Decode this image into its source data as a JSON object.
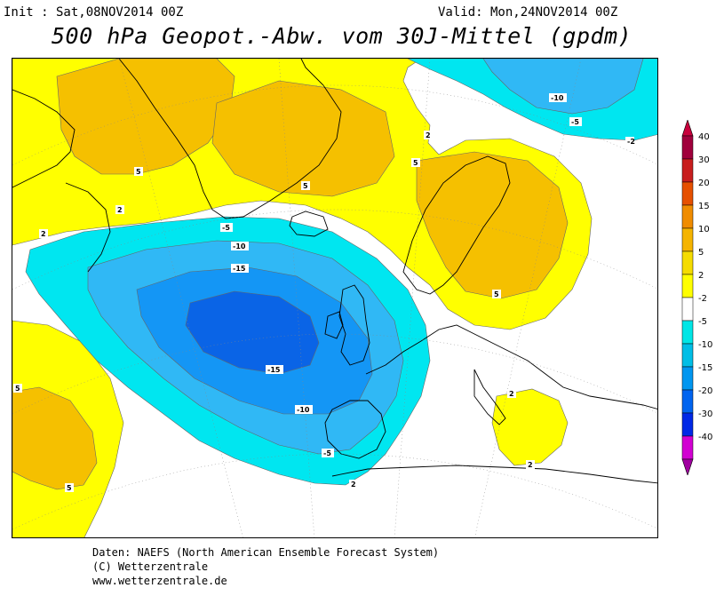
{
  "header": {
    "init": "Init : Sat,08NOV2014 00Z",
    "valid": "Valid: Mon,24NOV2014 00Z",
    "title": "500 hPa Geopot.-Abw. vom 30J-Mittel (gpdm)"
  },
  "map": {
    "contour_labels": [
      "2",
      "5",
      "-2",
      "-5",
      "-10",
      "-15"
    ],
    "label_values": {
      "l2": "2",
      "l5": "5",
      "lm2": "-2",
      "lm5": "-5",
      "lm10": "-10",
      "lm15": "-15"
    }
  },
  "legend": {
    "levels": [
      {
        "label": "40",
        "color": "#a0003c"
      },
      {
        "label": "30",
        "color": "#c81e1e"
      },
      {
        "label": "20",
        "color": "#e65000"
      },
      {
        "label": "15",
        "color": "#f08c00"
      },
      {
        "label": "10",
        "color": "#f5b400"
      },
      {
        "label": "5",
        "color": "#f5dc00"
      },
      {
        "label": "2",
        "color": "#ffff00"
      },
      {
        "label": "-2",
        "color": "#ffffff"
      },
      {
        "label": "-5",
        "color": "#00e6e6"
      },
      {
        "label": "-10",
        "color": "#00bee6"
      },
      {
        "label": "-15",
        "color": "#0096f0"
      },
      {
        "label": "-20",
        "color": "#0064f0"
      },
      {
        "label": "-30",
        "color": "#0028e6"
      },
      {
        "label": "-40",
        "color": "#d200d2"
      }
    ],
    "top_color": "#c8003c",
    "bottom_color": "#a000a0"
  },
  "colors": {
    "yellow_light": "#ffff00",
    "yellow_mid": "#f8e000",
    "orange": "#f5c000",
    "cyan": "#00e6f0",
    "blue_light": "#30b8f5",
    "blue_mid": "#1496f5",
    "blue_dark": "#0a64e6"
  },
  "footer": {
    "line1": "Daten: NAEFS (North American Ensemble Forecast System)",
    "line2": "(C) Wetterzentrale",
    "line3": "www.wetterzentrale.de"
  }
}
